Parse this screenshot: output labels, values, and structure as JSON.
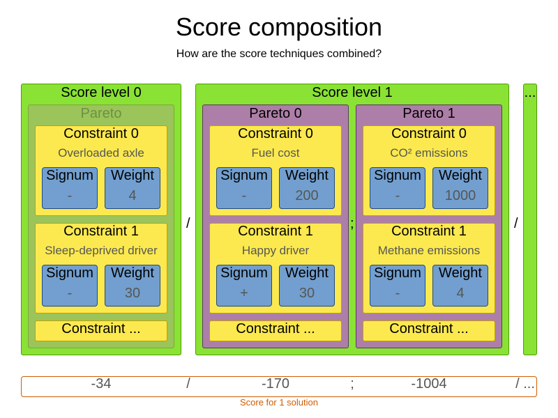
{
  "title": "Score composition",
  "subtitle": "How are the score techniques combined?",
  "levels": [
    {
      "label": "Score level 0",
      "paretos": [
        {
          "label": "Pareto",
          "constraints": [
            {
              "name": "Constraint 0",
              "desc": "Overloaded axle",
              "signum_label": "Signum",
              "signum": "-",
              "weight_label": "Weight",
              "weight": "4"
            },
            {
              "name": "Constraint 1",
              "desc": "Sleep-deprived driver",
              "signum_label": "Signum",
              "signum": "-",
              "weight_label": "Weight",
              "weight": "30"
            }
          ],
          "more": "Constraint ..."
        }
      ]
    },
    {
      "label": "Score level 1",
      "paretos": [
        {
          "label": "Pareto 0",
          "constraints": [
            {
              "name": "Constraint 0",
              "desc": "Fuel cost",
              "signum_label": "Signum",
              "signum": "-",
              "weight_label": "Weight",
              "weight": "200"
            },
            {
              "name": "Constraint 1",
              "desc": "Happy driver",
              "signum_label": "Signum",
              "signum": "+",
              "weight_label": "Weight",
              "weight": "30"
            }
          ],
          "more": "Constraint ..."
        },
        {
          "label": "Pareto 1",
          "constraints": [
            {
              "name": "Constraint 0",
              "desc": "CO² emissions",
              "signum_label": "Signum",
              "signum": "-",
              "weight_label": "Weight",
              "weight": "1000"
            },
            {
              "name": "Constraint 1",
              "desc": "Methane emissions",
              "signum_label": "Signum",
              "signum": "-",
              "weight_label": "Weight",
              "weight": "4"
            }
          ],
          "more": "Constraint ..."
        }
      ]
    },
    {
      "label": "...",
      "paretos": []
    }
  ],
  "separators": [
    "/",
    ";",
    "/"
  ],
  "score": {
    "values": [
      "-34",
      "/",
      "-170",
      ";",
      "-1004",
      "/ ..."
    ],
    "caption": "Score for 1 solution"
  },
  "colors": {
    "level": "#8ae234",
    "pareto": "#ad7fa8",
    "constraint": "#fce94f",
    "factor": "#729fcf",
    "score": "#ce5c00"
  }
}
